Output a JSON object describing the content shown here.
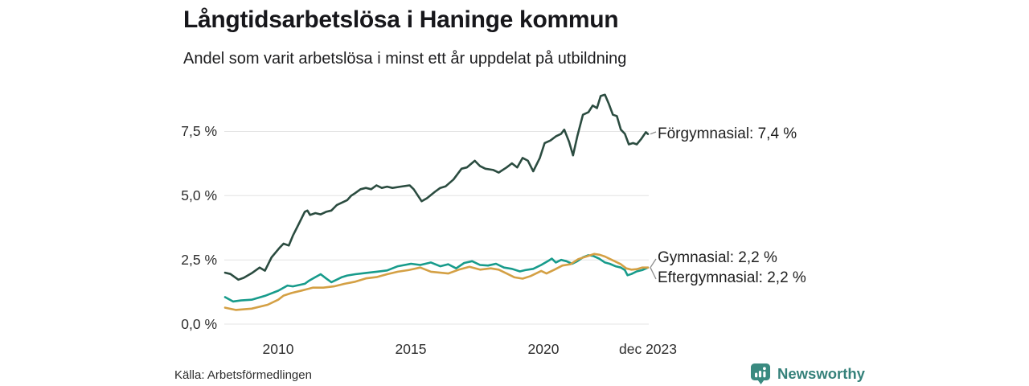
{
  "source": "Källa: Arbetsförmedlingen",
  "brand": {
    "name": "Newsworthy",
    "color": "#35817a"
  },
  "colors": {
    "background": "#ffffff",
    "gridline": "#e4e4e4",
    "title_text": "#17171b",
    "connector": "#8c8c8c"
  },
  "chart_data": {
    "type": "line",
    "title": "Långtidsarbetslösa i Haninge kommun",
    "subtitle": "Andel som varit arbetslösa i minst ett år uppdelat på utbildning",
    "unit": "%",
    "grid": true,
    "legend_position": "end-of-line-labels",
    "x_axis": {
      "range": [
        2008.0,
        2023.92
      ],
      "ticks": [
        {
          "year": 2010,
          "label": "2010"
        },
        {
          "year": 2015,
          "label": "2015"
        },
        {
          "year": 2020,
          "label": "2020"
        },
        {
          "year": 2023.92,
          "label": "dec 2023"
        }
      ]
    },
    "y_axis": {
      "range": [
        0,
        9.3
      ],
      "ticks": [
        {
          "value": 0.0,
          "label": "0,0 %"
        },
        {
          "value": 2.5,
          "label": "2,5 %"
        },
        {
          "value": 5.0,
          "label": "5,0 %"
        },
        {
          "value": 7.5,
          "label": "7,5 %"
        }
      ]
    },
    "series": [
      {
        "id": "forgymnasial",
        "name": "Förgymnasial",
        "label": "Förgymnasial: 7,4 %",
        "end_value": 7.4,
        "color": "#2b4c40",
        "points": [
          [
            2008.0,
            2.0
          ],
          [
            2008.2,
            1.95
          ],
          [
            2008.5,
            1.73
          ],
          [
            2008.7,
            1.8
          ],
          [
            2009.0,
            1.98
          ],
          [
            2009.3,
            2.2
          ],
          [
            2009.5,
            2.08
          ],
          [
            2009.75,
            2.6
          ],
          [
            2010.05,
            2.97
          ],
          [
            2010.2,
            3.13
          ],
          [
            2010.4,
            3.06
          ],
          [
            2010.55,
            3.44
          ],
          [
            2010.75,
            3.85
          ],
          [
            2011.0,
            4.37
          ],
          [
            2011.1,
            4.42
          ],
          [
            2011.2,
            4.25
          ],
          [
            2011.4,
            4.32
          ],
          [
            2011.6,
            4.27
          ],
          [
            2011.8,
            4.37
          ],
          [
            2012.0,
            4.42
          ],
          [
            2012.2,
            4.63
          ],
          [
            2012.4,
            4.73
          ],
          [
            2012.6,
            4.83
          ],
          [
            2012.75,
            5.0
          ],
          [
            2012.9,
            5.1
          ],
          [
            2013.1,
            5.25
          ],
          [
            2013.3,
            5.3
          ],
          [
            2013.5,
            5.25
          ],
          [
            2013.7,
            5.4
          ],
          [
            2013.9,
            5.3
          ],
          [
            2014.1,
            5.35
          ],
          [
            2014.3,
            5.3
          ],
          [
            2014.6,
            5.35
          ],
          [
            2014.95,
            5.4
          ],
          [
            2015.1,
            5.25
          ],
          [
            2015.4,
            4.78
          ],
          [
            2015.6,
            4.9
          ],
          [
            2015.9,
            5.15
          ],
          [
            2016.1,
            5.3
          ],
          [
            2016.3,
            5.36
          ],
          [
            2016.6,
            5.63
          ],
          [
            2016.9,
            6.05
          ],
          [
            2017.1,
            6.1
          ],
          [
            2017.4,
            6.36
          ],
          [
            2017.6,
            6.15
          ],
          [
            2017.8,
            6.05
          ],
          [
            2018.1,
            6.0
          ],
          [
            2018.3,
            5.9
          ],
          [
            2018.6,
            6.1
          ],
          [
            2018.8,
            6.26
          ],
          [
            2019.0,
            6.1
          ],
          [
            2019.2,
            6.47
          ],
          [
            2019.4,
            6.36
          ],
          [
            2019.6,
            5.95
          ],
          [
            2019.85,
            6.47
          ],
          [
            2020.03,
            7.05
          ],
          [
            2020.25,
            7.15
          ],
          [
            2020.45,
            7.31
          ],
          [
            2020.65,
            7.41
          ],
          [
            2020.77,
            7.57
          ],
          [
            2020.95,
            7.1
          ],
          [
            2021.1,
            6.57
          ],
          [
            2021.26,
            7.31
          ],
          [
            2021.47,
            8.15
          ],
          [
            2021.68,
            8.25
          ],
          [
            2021.84,
            8.51
          ],
          [
            2022.0,
            8.41
          ],
          [
            2022.14,
            8.88
          ],
          [
            2022.3,
            8.93
          ],
          [
            2022.45,
            8.57
          ],
          [
            2022.6,
            8.15
          ],
          [
            2022.75,
            8.1
          ],
          [
            2022.9,
            7.57
          ],
          [
            2023.05,
            7.41
          ],
          [
            2023.2,
            7.0
          ],
          [
            2023.36,
            7.05
          ],
          [
            2023.5,
            7.0
          ],
          [
            2023.66,
            7.2
          ],
          [
            2023.84,
            7.47
          ],
          [
            2023.92,
            7.4
          ]
        ]
      },
      {
        "id": "gymnasial",
        "name": "Gymnasial",
        "label": "Gymnasial: 2,2 %",
        "end_value": 2.2,
        "color": "#179b8b",
        "points": [
          [
            2008.0,
            1.05
          ],
          [
            2008.3,
            0.88
          ],
          [
            2008.6,
            0.92
          ],
          [
            2009.0,
            0.95
          ],
          [
            2009.5,
            1.1
          ],
          [
            2010.0,
            1.3
          ],
          [
            2010.35,
            1.5
          ],
          [
            2010.55,
            1.47
          ],
          [
            2011.0,
            1.57
          ],
          [
            2011.15,
            1.68
          ],
          [
            2011.4,
            1.83
          ],
          [
            2011.6,
            1.94
          ],
          [
            2011.8,
            1.78
          ],
          [
            2012.0,
            1.63
          ],
          [
            2012.2,
            1.73
          ],
          [
            2012.4,
            1.83
          ],
          [
            2012.6,
            1.89
          ],
          [
            2012.9,
            1.94
          ],
          [
            2013.3,
            1.99
          ],
          [
            2013.7,
            2.04
          ],
          [
            2014.1,
            2.09
          ],
          [
            2014.5,
            2.25
          ],
          [
            2015.0,
            2.35
          ],
          [
            2015.35,
            2.3
          ],
          [
            2015.75,
            2.4
          ],
          [
            2016.1,
            2.25
          ],
          [
            2016.4,
            2.33
          ],
          [
            2016.7,
            2.17
          ],
          [
            2017.0,
            2.38
          ],
          [
            2017.3,
            2.45
          ],
          [
            2017.6,
            2.3
          ],
          [
            2017.9,
            2.28
          ],
          [
            2018.2,
            2.35
          ],
          [
            2018.5,
            2.2
          ],
          [
            2018.8,
            2.15
          ],
          [
            2019.1,
            2.05
          ],
          [
            2019.3,
            2.1
          ],
          [
            2019.6,
            2.15
          ],
          [
            2019.9,
            2.3
          ],
          [
            2020.15,
            2.45
          ],
          [
            2020.3,
            2.55
          ],
          [
            2020.45,
            2.4
          ],
          [
            2020.65,
            2.5
          ],
          [
            2020.85,
            2.45
          ],
          [
            2021.07,
            2.35
          ],
          [
            2021.26,
            2.45
          ],
          [
            2021.47,
            2.6
          ],
          [
            2021.68,
            2.68
          ],
          [
            2021.87,
            2.65
          ],
          [
            2022.08,
            2.55
          ],
          [
            2022.3,
            2.4
          ],
          [
            2022.48,
            2.35
          ],
          [
            2022.7,
            2.25
          ],
          [
            2022.9,
            2.2
          ],
          [
            2023.05,
            2.1
          ],
          [
            2023.15,
            1.9
          ],
          [
            2023.3,
            1.95
          ],
          [
            2023.5,
            2.05
          ],
          [
            2023.7,
            2.1
          ],
          [
            2023.92,
            2.2
          ]
        ]
      },
      {
        "id": "eftergymnasial",
        "name": "Eftergymnasial",
        "label": "Eftergymnasial: 2,2 %",
        "end_value": 2.2,
        "color": "#d4a044",
        "points": [
          [
            2008.0,
            0.64
          ],
          [
            2008.4,
            0.55
          ],
          [
            2009.0,
            0.6
          ],
          [
            2009.6,
            0.75
          ],
          [
            2010.0,
            0.95
          ],
          [
            2010.2,
            1.11
          ],
          [
            2010.5,
            1.21
          ],
          [
            2010.9,
            1.31
          ],
          [
            2011.3,
            1.42
          ],
          [
            2011.7,
            1.42
          ],
          [
            2012.1,
            1.47
          ],
          [
            2012.5,
            1.57
          ],
          [
            2012.9,
            1.65
          ],
          [
            2013.3,
            1.78
          ],
          [
            2013.7,
            1.83
          ],
          [
            2014.1,
            1.94
          ],
          [
            2014.5,
            2.04
          ],
          [
            2014.9,
            2.1
          ],
          [
            2015.35,
            2.2
          ],
          [
            2015.75,
            2.04
          ],
          [
            2016.1,
            2.0
          ],
          [
            2016.4,
            1.97
          ],
          [
            2016.8,
            2.12
          ],
          [
            2017.2,
            2.23
          ],
          [
            2017.6,
            2.12
          ],
          [
            2018.0,
            2.17
          ],
          [
            2018.3,
            2.12
          ],
          [
            2018.6,
            1.97
          ],
          [
            2018.9,
            1.82
          ],
          [
            2019.2,
            1.77
          ],
          [
            2019.5,
            1.87
          ],
          [
            2019.9,
            2.07
          ],
          [
            2020.1,
            1.97
          ],
          [
            2020.4,
            2.12
          ],
          [
            2020.7,
            2.28
          ],
          [
            2021.0,
            2.33
          ],
          [
            2021.3,
            2.53
          ],
          [
            2021.6,
            2.63
          ],
          [
            2021.9,
            2.73
          ],
          [
            2022.1,
            2.7
          ],
          [
            2022.3,
            2.63
          ],
          [
            2022.6,
            2.48
          ],
          [
            2022.9,
            2.33
          ],
          [
            2023.1,
            2.17
          ],
          [
            2023.3,
            2.12
          ],
          [
            2023.5,
            2.14
          ],
          [
            2023.7,
            2.2
          ],
          [
            2023.92,
            2.2
          ]
        ]
      }
    ]
  }
}
